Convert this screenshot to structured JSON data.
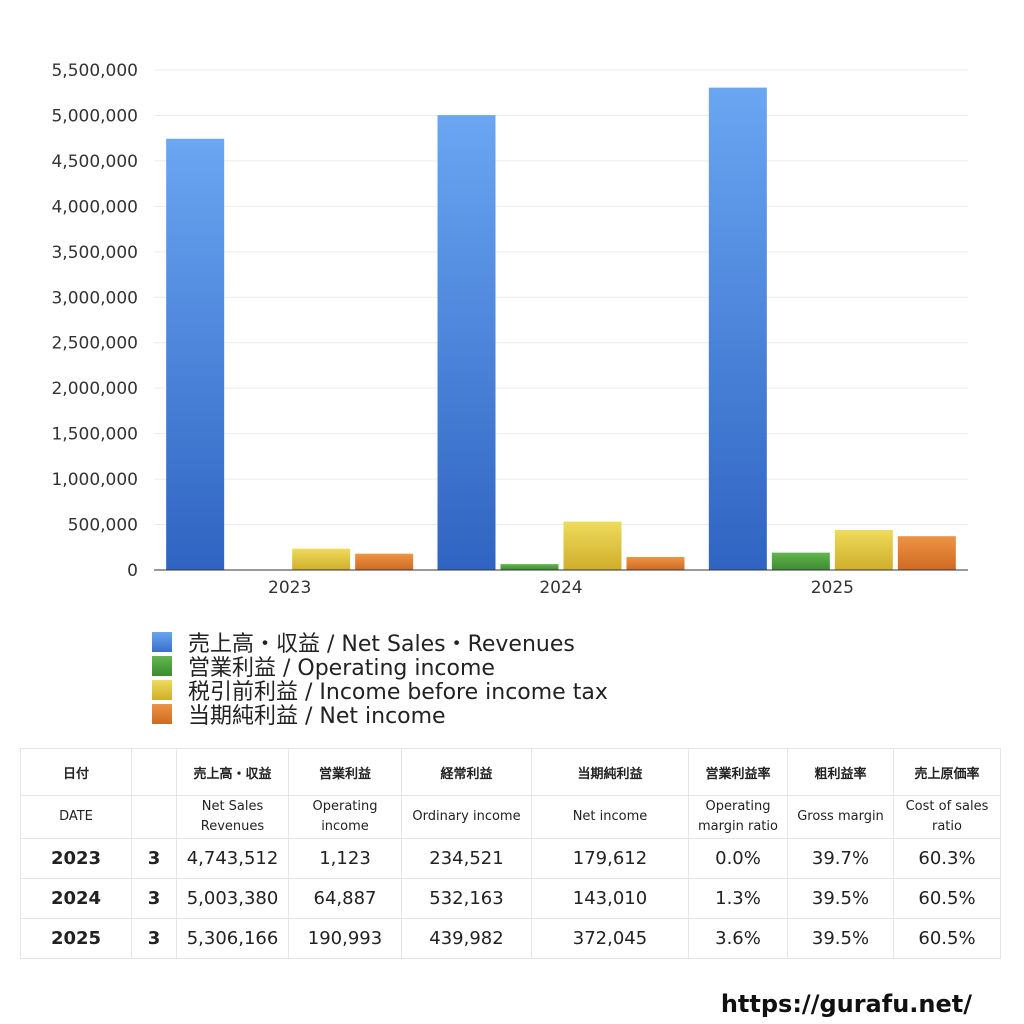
{
  "chart_data": {
    "type": "bar",
    "categories": [
      "2023",
      "2024",
      "2025"
    ],
    "series": [
      {
        "name": "売上高・収益 / Net Sales・Revenues",
        "values": [
          4743512,
          5003380,
          5306166
        ],
        "color": "#4a86e0"
      },
      {
        "name": "営業利益 / Operating income",
        "values": [
          1123,
          64887,
          190993
        ],
        "color": "#4c9a3c"
      },
      {
        "name": "税引前利益 / Income before income tax",
        "values": [
          234521,
          532163,
          439982
        ],
        "color": "#dfc43a"
      },
      {
        "name": "当期純利益 / Net income",
        "values": [
          179612,
          143010,
          372045
        ],
        "color": "#de7f2e"
      }
    ],
    "ylim": [
      0,
      5500000
    ],
    "yticks": [
      "0",
      "500,000",
      "1,000,000",
      "1,500,000",
      "2,000,000",
      "2,500,000",
      "3,000,000",
      "3,500,000",
      "4,000,000",
      "4,500,000",
      "5,000,000",
      "5,500,000"
    ],
    "grid": true,
    "legend": "bottom"
  },
  "table": {
    "header_jp": [
      "日付",
      "",
      "売上高・収益",
      "営業利益",
      "経常利益",
      "当期純利益",
      "営業利益率",
      "粗利益率",
      "売上原価率"
    ],
    "header_en": [
      "DATE",
      "",
      "Net Sales Revenues",
      "Operating income",
      "Ordinary income",
      "Net income",
      "Operating margin ratio",
      "Gross margin",
      "Cost of sales ratio"
    ],
    "rows": [
      {
        "year": "2023",
        "month": "3",
        "sales": "4,743,512",
        "op": "1,123",
        "ord": "234,521",
        "net": "179,612",
        "opm": "0.0%",
        "gm": "39.7%",
        "cos": "60.3%"
      },
      {
        "year": "2024",
        "month": "3",
        "sales": "5,003,380",
        "op": "64,887",
        "ord": "532,163",
        "net": "143,010",
        "opm": "1.3%",
        "gm": "39.5%",
        "cos": "60.5%"
      },
      {
        "year": "2025",
        "month": "3",
        "sales": "5,306,166",
        "op": "190,993",
        "ord": "439,982",
        "net": "372,045",
        "opm": "3.6%",
        "gm": "39.5%",
        "cos": "60.5%"
      }
    ]
  },
  "footer": {
    "url": "https://gurafu.net/"
  }
}
